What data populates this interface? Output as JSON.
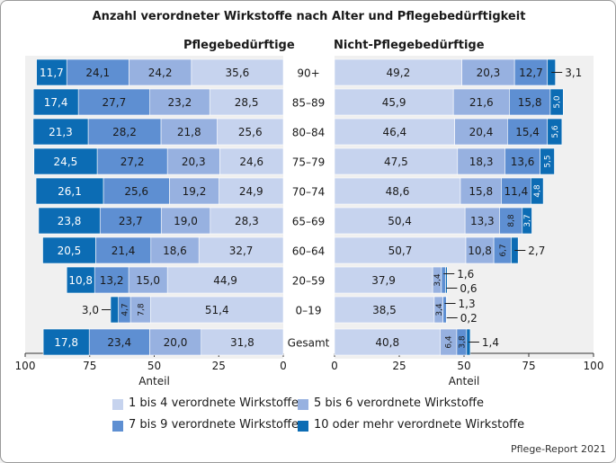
{
  "title": "Anzahl verordneter Wirkstoffe nach Alter und Pflegebedürftigkeit",
  "source": "Pflege-Report 2021",
  "colors": [
    "#c6d3ee",
    "#97b1e0",
    "#5e8fd2",
    "#0c6cb4"
  ],
  "chart_data": [
    {
      "type": "bar",
      "orientation": "horizontal-stacked",
      "title": "Pflegebedürftige",
      "xlabel": "Anteil",
      "direction": "reversed",
      "xlim": [
        0,
        100
      ],
      "xticks": [
        "100",
        "75",
        "50",
        "25",
        "0"
      ],
      "categories": [
        "90+",
        "85–89",
        "80–84",
        "75–79",
        "70–74",
        "65–69",
        "60–64",
        "20–59",
        "0–19",
        "Gesamt"
      ],
      "series": [
        {
          "name": "1 bis 4 verordnete Wirkstoffe",
          "values": [
            35.6,
            28.5,
            25.6,
            24.6,
            24.9,
            28.3,
            32.7,
            44.9,
            51.4,
            31.8
          ],
          "labels": [
            "35,6",
            "28,5",
            "25,6",
            "24,6",
            "24,9",
            "28,3",
            "32,7",
            "44,9",
            "51,4",
            "31,8"
          ]
        },
        {
          "name": "5 bis 6 verordnete Wirkstoffe",
          "values": [
            24.2,
            23.2,
            21.8,
            20.3,
            19.2,
            19.0,
            18.6,
            15.0,
            7.8,
            20.0
          ],
          "labels": [
            "24,2",
            "23,2",
            "21,8",
            "20,3",
            "19,2",
            "19,0",
            "18,6",
            "15,0",
            "7,8",
            "20,0"
          ]
        },
        {
          "name": "7 bis 9 verordnete Wirkstoffe",
          "values": [
            24.1,
            27.7,
            28.2,
            27.2,
            25.6,
            23.7,
            21.4,
            13.2,
            4.7,
            23.4
          ],
          "labels": [
            "24,1",
            "27,7",
            "28,2",
            "27,2",
            "25,6",
            "23,7",
            "21,4",
            "13,2",
            "4,7",
            "23,4"
          ]
        },
        {
          "name": "10 oder mehr verordnete Wirkstoffe",
          "values": [
            11.7,
            17.4,
            21.3,
            24.5,
            26.1,
            23.8,
            20.5,
            10.8,
            3.0,
            17.8
          ],
          "labels": [
            "11,7",
            "17,4",
            "21,3",
            "24,5",
            "26,1",
            "23,8",
            "20,5",
            "10,8",
            "3,0",
            "17,8"
          ]
        }
      ]
    },
    {
      "type": "bar",
      "orientation": "horizontal-stacked",
      "title": "Nicht-Pflegebedürftige",
      "xlabel": "Anteil",
      "direction": "normal",
      "xlim": [
        0,
        100
      ],
      "xticks": [
        "0",
        "25",
        "50",
        "75",
        "100"
      ],
      "categories": [
        "90+",
        "85–89",
        "80–84",
        "75–79",
        "70–74",
        "65–69",
        "60–64",
        "20–59",
        "0–19",
        "Gesamt"
      ],
      "series": [
        {
          "name": "1 bis 4 verordnete Wirkstoffe",
          "values": [
            49.2,
            45.9,
            46.4,
            47.5,
            48.6,
            50.4,
            50.7,
            37.9,
            38.5,
            40.8
          ],
          "labels": [
            "49,2",
            "45,9",
            "46,4",
            "47,5",
            "48,6",
            "50,4",
            "50,7",
            "37,9",
            "38,5",
            "40,8"
          ]
        },
        {
          "name": "5 bis 6 verordnete Wirkstoffe",
          "values": [
            20.3,
            21.6,
            20.4,
            18.3,
            15.8,
            13.3,
            10.8,
            3.4,
            3.4,
            6.4
          ],
          "labels": [
            "20,3",
            "21,6",
            "20,4",
            "18,3",
            "15,8",
            "13,3",
            "10,8",
            "3,4",
            "3,4",
            "6,4"
          ]
        },
        {
          "name": "7 bis 9 verordnete Wirkstoffe",
          "values": [
            12.7,
            15.8,
            15.4,
            13.6,
            11.4,
            8.8,
            6.7,
            1.6,
            1.3,
            3.8
          ],
          "labels": [
            "12,7",
            "15,8",
            "15,4",
            "13,6",
            "11,4",
            "8,8",
            "6,7",
            "1,6",
            "1,3",
            "3,8"
          ]
        },
        {
          "name": "10 oder mehr verordnete Wirkstoffe",
          "values": [
            3.1,
            5.0,
            5.6,
            5.5,
            4.8,
            3.7,
            2.7,
            0.6,
            0.2,
            1.4
          ],
          "labels": [
            "3,1",
            "5,0",
            "5,6",
            "5,5",
            "4,8",
            "3,7",
            "2,7",
            "0,6",
            "0,2",
            "1,4"
          ]
        }
      ]
    }
  ],
  "legend": [
    "1 bis 4 verordnete Wirkstoffe",
    "5 bis 6 verordnete Wirkstoffe",
    "7 bis 9 verordnete Wirkstoffe",
    "10 oder mehr verordnete Wirkstoffe"
  ]
}
